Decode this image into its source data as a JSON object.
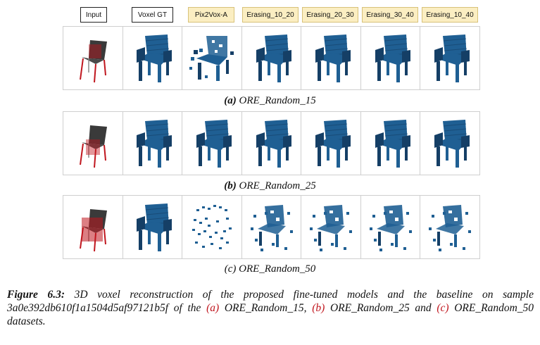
{
  "columns": [
    {
      "label": "Input",
      "style": "plain"
    },
    {
      "label": "Voxel GT",
      "style": "plain"
    },
    {
      "label": "Pix2Vox-A",
      "style": "yellow"
    },
    {
      "label": "Erasing_10_20",
      "style": "yellow"
    },
    {
      "label": "Erasing_20_30",
      "style": "yellow"
    },
    {
      "label": "Erasing_30_40",
      "style": "yellow"
    },
    {
      "label": "Erasing_10_40",
      "style": "yellow"
    }
  ],
  "rows": [
    {
      "letter": "(a)",
      "name": "ORE_Random_15",
      "cells": [
        "input",
        "full",
        "sparse",
        "full",
        "full",
        "full",
        "full"
      ]
    },
    {
      "letter": "(b)",
      "name": "ORE_Random_25",
      "cells": [
        "input",
        "full",
        "full",
        "full",
        "full",
        "full",
        "full"
      ]
    },
    {
      "letter": "(c)",
      "name": "ORE_Random_50",
      "cells": [
        "input",
        "full",
        "scatter",
        "partial",
        "partial",
        "partial",
        "partial"
      ]
    }
  ],
  "caption": {
    "label": "Figure 6.3:",
    "text1": " 3D voxel reconstruction of the proposed fine-tuned models and the baseline on sample 3a0e392db610f1a1504d5af97121b5f of the ",
    "a": "(a)",
    "a_name": " ORE_Random_15, ",
    "b": "(b)",
    "b_name": " ORE_Random_25 and ",
    "c": "(c)",
    "c_name": " ORE_Random_50 datasets."
  },
  "colors": {
    "voxel": "#1f5f93",
    "voxel_dark": "#153f66",
    "accent": "#c0161e",
    "header_yellow": "#fbeec2"
  }
}
